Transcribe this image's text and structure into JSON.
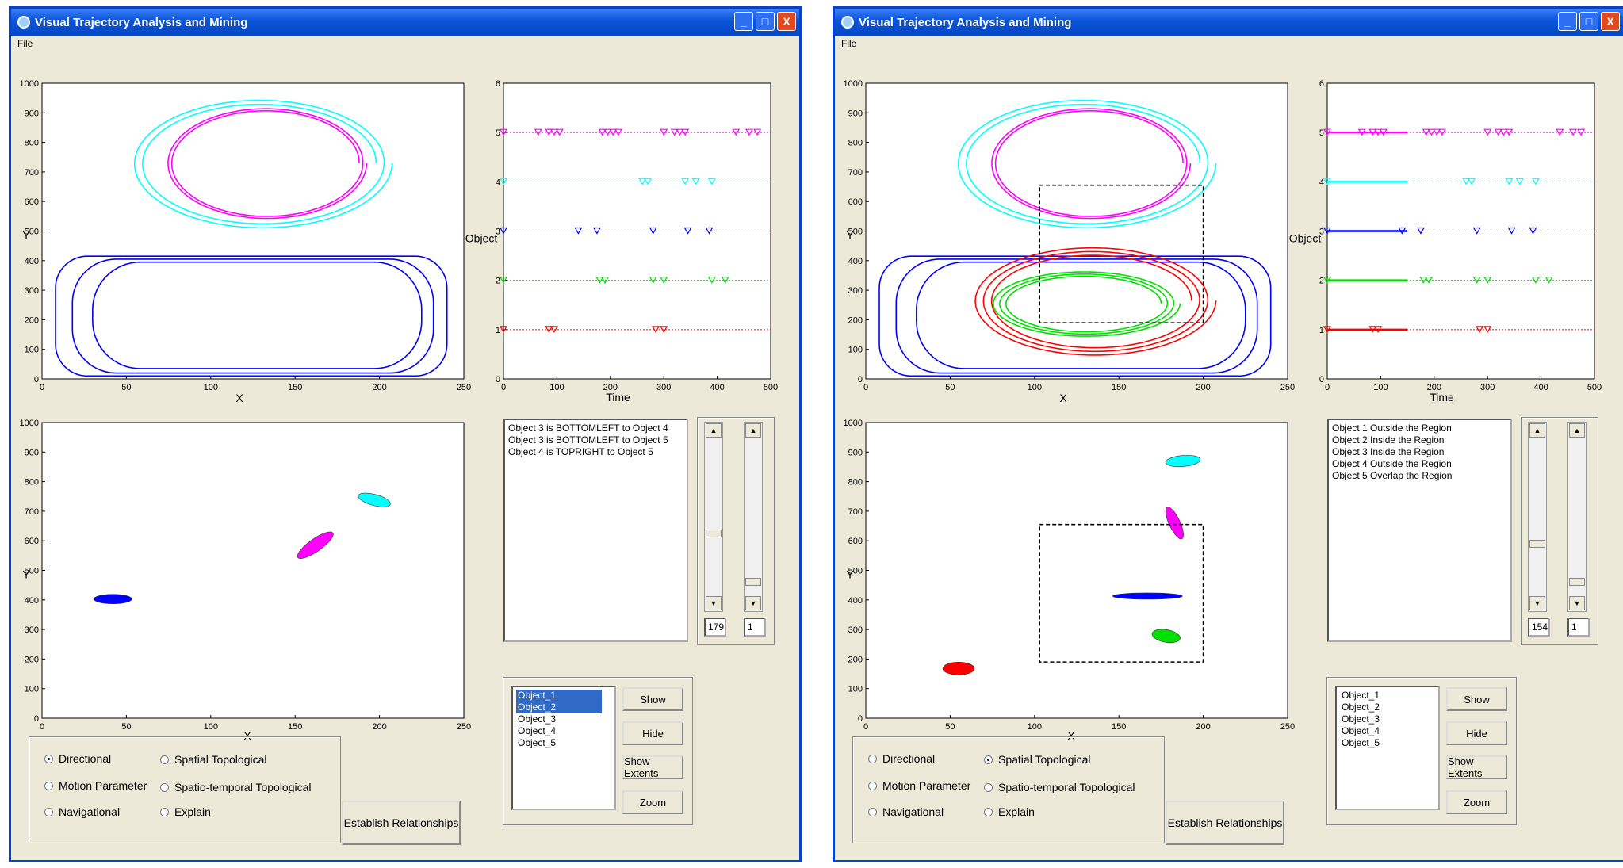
{
  "windows": [
    {
      "title": "Visual Trajectory Analysis and Mining",
      "menu": "File",
      "relations": [
        "Object 3 is BOTTOMLEFT to Object 4",
        "Object 3 is BOTTOMLEFT to Object 5",
        "Object 4 is TOPRIGHT to Object 5"
      ],
      "scroll_a": "179",
      "scroll_b": "1",
      "objects": [
        {
          "label": "Object_1",
          "selected": true
        },
        {
          "label": "Object_2",
          "selected": true
        },
        {
          "label": "Object_3",
          "selected": false
        },
        {
          "label": "Object_4",
          "selected": false
        },
        {
          "label": "Object_5",
          "selected": false
        }
      ],
      "buttons": {
        "show": "Show",
        "hide": "Hide",
        "extents": "Show Extents",
        "zoom": "Zoom",
        "establish": "Establish Relationships"
      },
      "radios": [
        {
          "label": "Directional",
          "checked": true
        },
        {
          "label": "Spatial Topological",
          "checked": false
        },
        {
          "label": "Motion Parameter",
          "checked": false
        },
        {
          "label": "Spatio-temporal Topological",
          "checked": false
        },
        {
          "label": "Navigational",
          "checked": false
        },
        {
          "label": "Explain",
          "checked": false
        }
      ]
    },
    {
      "title": "Visual Trajectory Analysis and Mining",
      "menu": "File",
      "relations": [
        "Object 1 Outside the Region",
        "Object 2 Inside the Region",
        "Object 3 Inside the Region",
        "Object 4 Outside the Region",
        "Object 5 Overlap the Region"
      ],
      "scroll_a": "154",
      "scroll_b": "1",
      "objects": [
        {
          "label": "Object_1",
          "selected": false
        },
        {
          "label": "Object_2",
          "selected": false
        },
        {
          "label": "Object_3",
          "selected": false
        },
        {
          "label": "Object_4",
          "selected": false
        },
        {
          "label": "Object_5",
          "selected": false
        }
      ],
      "buttons": {
        "show": "Show",
        "hide": "Hide",
        "extents": "Show Extents",
        "zoom": "Zoom",
        "establish": "Establish Relationships"
      },
      "radios": [
        {
          "label": "Directional",
          "checked": false
        },
        {
          "label": "Spatial Topological",
          "checked": true
        },
        {
          "label": "Motion Parameter",
          "checked": false
        },
        {
          "label": "Spatio-temporal Topological",
          "checked": false
        },
        {
          "label": "Navigational",
          "checked": false
        },
        {
          "label": "Explain",
          "checked": false
        }
      ]
    }
  ],
  "colors": {
    "obj1": "#ff0000",
    "obj2": "#00e000",
    "obj3": "#0000ff",
    "obj4": "#00ffff",
    "obj5": "#ff00ff"
  },
  "chart_data": [
    {
      "type": "line",
      "chart": "trajectory",
      "xlabel": "X",
      "ylabel": "Y",
      "xlim": [
        0,
        250
      ],
      "ylim": [
        0,
        1000
      ],
      "xticks": [
        0,
        50,
        100,
        150,
        200,
        250
      ],
      "yticks": [
        0,
        100,
        200,
        300,
        400,
        500,
        600,
        700,
        800,
        900,
        1000
      ]
    },
    {
      "type": "scatter",
      "chart": "timeline",
      "xlabel": "Time",
      "ylabel": "Object",
      "xlim": [
        0,
        500
      ],
      "ylim": [
        0,
        6
      ],
      "xticks": [
        0,
        100,
        200,
        300,
        400,
        500
      ],
      "yticks": [
        0,
        1,
        2,
        3,
        4,
        5,
        6
      ],
      "series": [
        {
          "y": 1,
          "color": "#ff0000",
          "x": [
            0,
            85,
            95,
            285,
            300
          ]
        },
        {
          "y": 2,
          "color": "#00e000",
          "x": [
            0,
            180,
            190,
            280,
            300,
            390,
            415
          ]
        },
        {
          "y": 3,
          "color": "#0000ff",
          "x": [
            0,
            140,
            175,
            280,
            345,
            385
          ]
        },
        {
          "y": 4,
          "color": "#00ffff",
          "x": [
            0,
            260,
            270,
            340,
            360,
            390
          ]
        },
        {
          "y": 5,
          "color": "#ff00ff",
          "x": [
            0,
            65,
            85,
            95,
            105,
            185,
            195,
            205,
            215,
            300,
            320,
            330,
            340,
            435,
            460,
            475
          ]
        }
      ]
    },
    {
      "type": "scatter",
      "chart": "positions",
      "xlabel": "X",
      "ylabel": "Y",
      "xlim": [
        0,
        250
      ],
      "ylim": [
        0,
        1000
      ],
      "xticks": [
        0,
        50,
        100,
        150,
        200,
        250
      ],
      "yticks": [
        0,
        100,
        200,
        300,
        400,
        500,
        600,
        700,
        800,
        900,
        1000
      ]
    }
  ]
}
